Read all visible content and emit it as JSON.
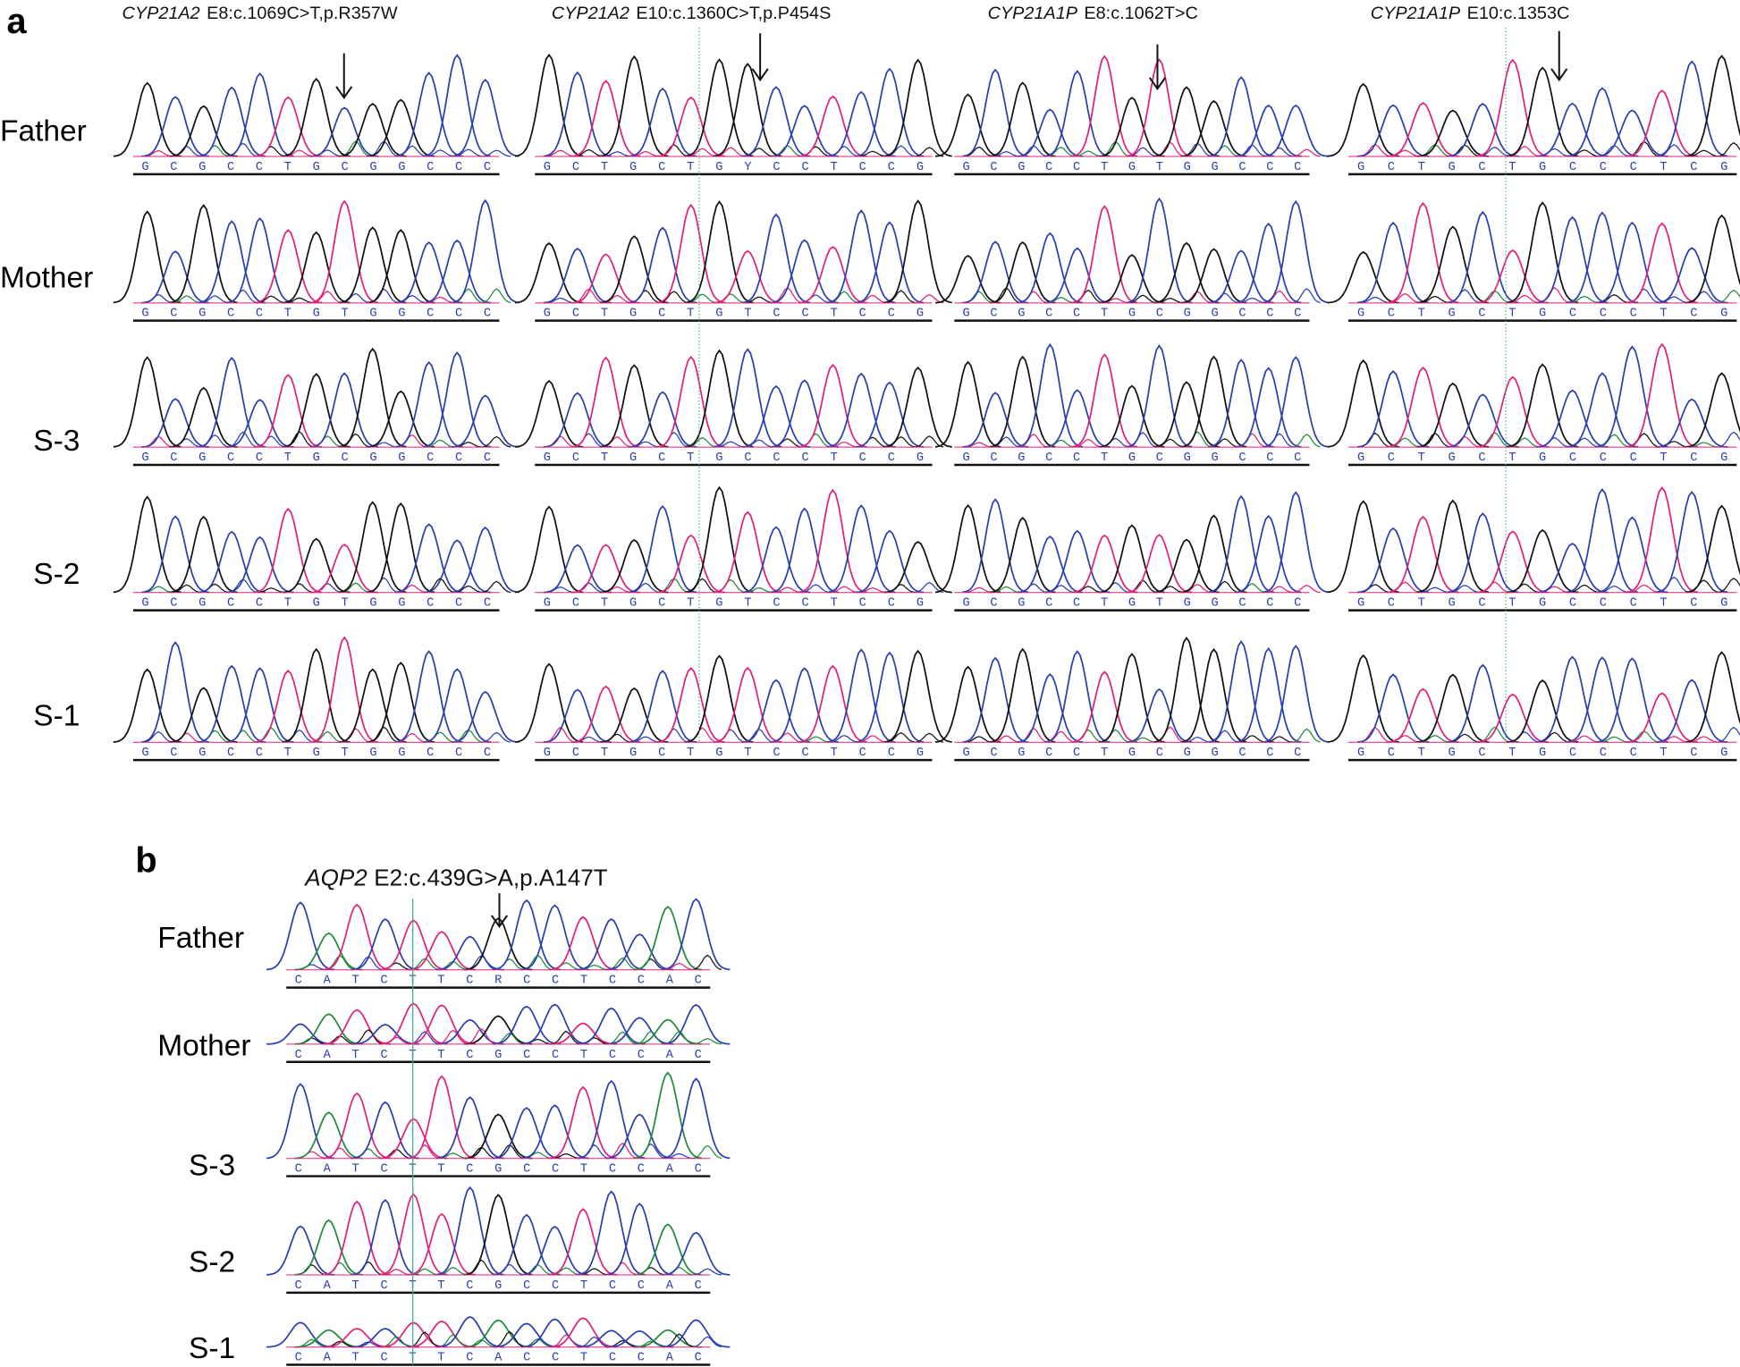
{
  "panel_a": {
    "label": "a",
    "row_labels": [
      "Father",
      "Mother",
      "S-3",
      "S-2",
      "S-1"
    ],
    "columns": [
      {
        "gene": "CYP21A2",
        "variant": "E8:c.1069C>T,p.R357W",
        "sequences": [
          "GCGCCTGCGGCCC",
          "GCGCCTGTGGCCC",
          "GCGCCTGCGGCCC",
          "GCGCCTGTGGCCC",
          "GCGCCTGTGGCCC"
        ]
      },
      {
        "gene": "CYP21A2",
        "variant": "E10:c.1360C>T,p.P454S",
        "sequences": [
          "GCTGCTGYCCTCCG",
          "GCTGCTGTCCTCCG",
          "GCTGCTGCCCTCCG",
          "GCTGCTGTCCTCCG",
          "GCTGCTGTCCTCCG"
        ]
      },
      {
        "gene": "CYP21A1P",
        "variant": "E8:c.1062T>C",
        "sequences": [
          "GCGCCTGTGGCCC",
          "GCGCCTGCGGCCC",
          "GCGCCTGCGGCCC",
          "GCGCCTGTGGCCC",
          "GCGCCTGCGGCCC"
        ]
      },
      {
        "gene": "CYP21A1P",
        "variant": "E10:c.1353C",
        "sequences": [
          "GCTGCTGCCCTCG",
          "GCTGCTGCCCTCG",
          "GCTGCTGCCCTCG",
          "GCTGCTGCCCTCG",
          "GCTGCTGCCCTCG"
        ]
      }
    ]
  },
  "panel_b": {
    "label": "b",
    "gene": "AQP2",
    "variant": "E2:c.439G>A,p.A147T",
    "row_labels": [
      "Father",
      "Mother",
      "S-3",
      "S-2",
      "S-1"
    ],
    "sequences": [
      "CATCTTCRCCTCCAC",
      "CATCTTCGCCTCCAC",
      "CATCTTCGCCTCCAC",
      "CATCTTCGCCTCCAC",
      "CATCTTCACCTCCAC"
    ]
  }
}
